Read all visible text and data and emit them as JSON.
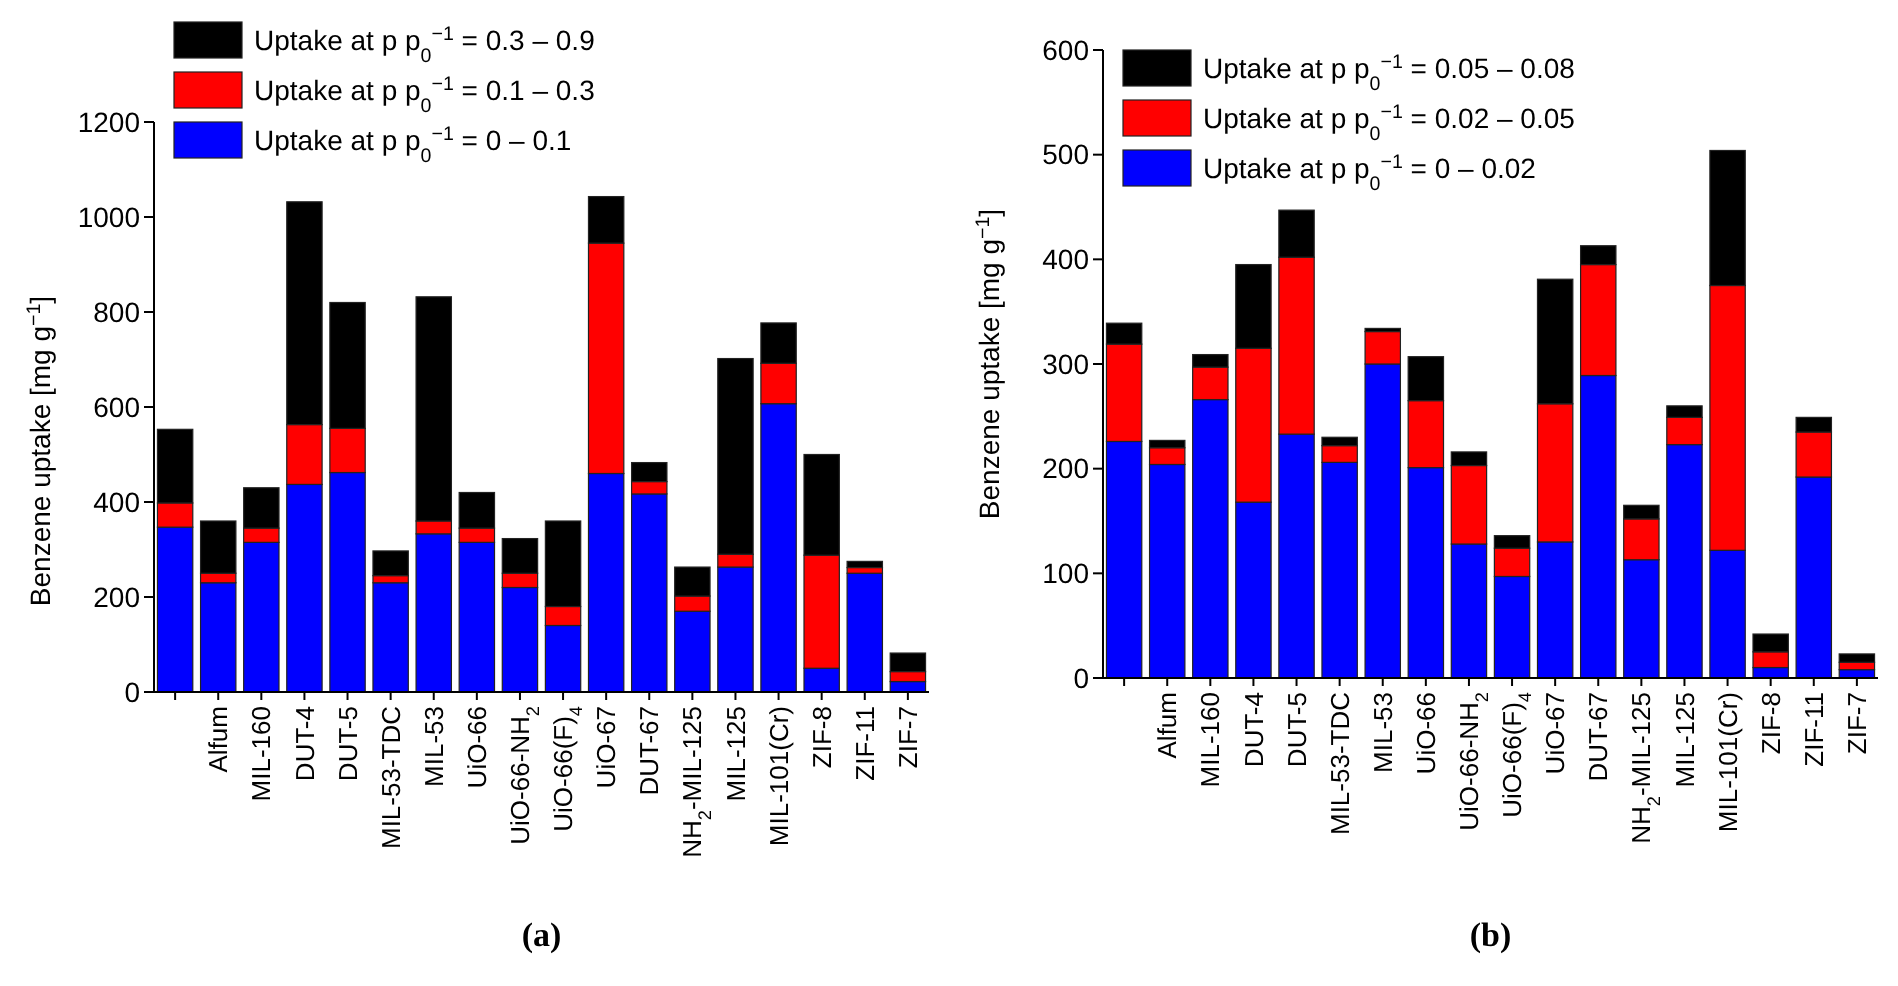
{
  "chart_data": [
    {
      "type": "bar",
      "stacked": true,
      "ylabel": "Benzene uptake [mg g$^{−1}$]",
      "annotations": [
        "(a)"
      ],
      "legend": "top left",
      "ylim": [
        0,
        1200
      ],
      "yticks": [
        0,
        200,
        400,
        600,
        800,
        1000,
        1200
      ],
      "categories": [
        null,
        "Alfum",
        "MIL-160",
        "DUT-4",
        "DUT-5",
        "MIL-53-TDC",
        "MIL-53",
        "UiO-66",
        "UiO-66-NH$_{2}$",
        "UiO-66(F)$_{4}$",
        "UiO-67",
        "DUT-67",
        "NH$_{2}$-MIL-125",
        "MIL-125",
        "MIL-101(Cr)",
        "ZIF-8",
        "ZIF-11",
        "ZIF-7"
      ],
      "series": [
        {
          "name": "Uptake at p p$_{0}$$^{−1}$ = 0 – 0.1",
          "color": "#0000ff",
          "values": [
            347,
            230,
            315,
            437,
            462,
            230,
            333,
            315,
            220,
            140,
            460,
            417,
            170,
            263,
            607,
            50,
            250,
            22
          ]
        },
        {
          "name": "Uptake at p p$_{0}$$^{−1}$ = 0.1 – 0.3",
          "color": "#ff0000",
          "values": [
            51,
            20,
            30,
            126,
            93,
            15,
            27,
            30,
            30,
            40,
            485,
            26,
            32,
            27,
            85,
            238,
            12,
            21
          ]
        },
        {
          "name": "Uptake at p p$_{0}$$^{−1}$ = 0.3 – 0.9",
          "color": "#000000",
          "values": [
            155,
            110,
            85,
            469,
            265,
            52,
            472,
            75,
            73,
            180,
            98,
            40,
            61,
            412,
            85,
            212,
            13,
            39
          ]
        }
      ]
    },
    {
      "type": "bar",
      "stacked": true,
      "ylabel": "Benzene uptake [mg g$^{−1}$]",
      "annotations": [
        "(b)"
      ],
      "legend": "top left",
      "ylim": [
        0,
        600
      ],
      "yticks": [
        0,
        100,
        200,
        300,
        400,
        500,
        600
      ],
      "categories": [
        null,
        "Alfum",
        "MIL-160",
        "DUT-4",
        "DUT-5",
        "MIL-53-TDC",
        "MIL-53",
        "UiO-66",
        "UiO-66-NH$_{2}$",
        "UiO-66(F)$_{4}$",
        "UiO-67",
        "DUT-67",
        "NH$_{2}$-MIL-125",
        "MIL-125",
        "MIL-101(Cr)",
        "ZIF-8",
        "ZIF-11",
        "ZIF-7"
      ],
      "series": [
        {
          "name": "Uptake at p p$_{0}$$^{−1}$ = 0 – 0.02",
          "color": "#0000ff",
          "values": [
            226,
            204,
            266,
            168,
            233,
            206,
            300,
            201,
            128,
            97,
            130,
            289,
            113,
            223,
            122,
            10,
            192,
            8
          ]
        },
        {
          "name": "Uptake at p p$_{0}$$^{−1}$ = 0.02 – 0.05",
          "color": "#ff0000",
          "values": [
            93,
            16,
            31,
            147,
            169,
            16,
            31,
            64,
            75,
            27,
            132,
            106,
            39,
            26,
            253,
            15,
            43,
            7
          ]
        },
        {
          "name": "Uptake at p p$_{0}$$^{−1}$ = 0.05 – 0.08",
          "color": "#000000",
          "values": [
            20,
            7,
            12,
            80,
            45,
            8,
            3,
            42,
            13,
            12,
            119,
            18,
            13,
            11,
            129,
            17,
            14,
            8
          ]
        }
      ]
    }
  ]
}
